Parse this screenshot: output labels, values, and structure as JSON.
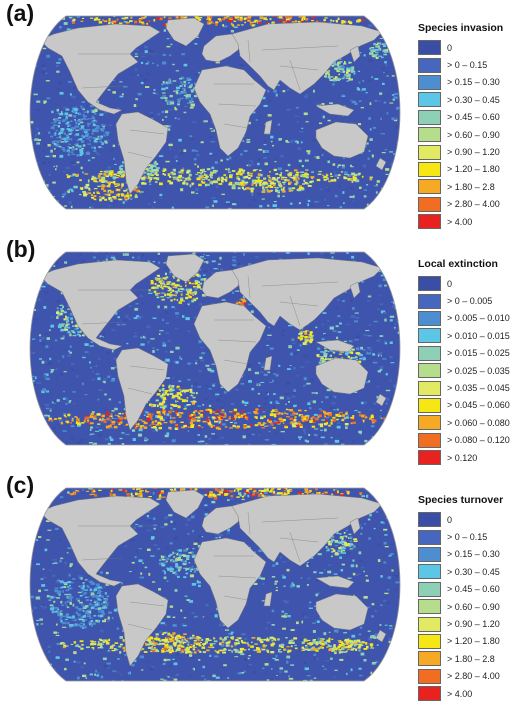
{
  "panels": [
    {
      "label": "(a)",
      "legend_title": "Species invasion",
      "palette": [
        "#3a4ea6",
        "#4766bd",
        "#4d8ed0",
        "#5cc6e6",
        "#8dd0b6",
        "#b6dd8b",
        "#e1ea62",
        "#f6e614",
        "#f6a924",
        "#f06d22",
        "#e8221f"
      ],
      "categories": [
        "0",
        "> 0 – 0.15",
        "> 0.15 – 0.30",
        "> 0.30 – 0.45",
        "> 0.45 – 0.60",
        "> 0.60 – 0.90",
        "> 0.90 – 1.20",
        "> 1.20 – 1.80",
        "> 1.80 – 2.8",
        "> 2.80 – 4.00",
        "> 4.00"
      ]
    },
    {
      "label": "(b)",
      "legend_title": "Local extinction",
      "palette": [
        "#3a4ea6",
        "#4766bd",
        "#4d8ed0",
        "#5cc6e6",
        "#8dd0b6",
        "#b6dd8b",
        "#e1ea62",
        "#f6e614",
        "#f6a924",
        "#f06d22",
        "#e8221f"
      ],
      "categories": [
        "0",
        "> 0 – 0.005",
        "> 0.005 – 0.010",
        "> 0.010 – 0.015",
        "> 0.015 – 0.025",
        "> 0.025 – 0.035",
        "> 0.035 – 0.045",
        "> 0.045 – 0.060",
        "> 0.060 – 0.080",
        "> 0.080 – 0.120",
        "> 0.120"
      ]
    },
    {
      "label": "(c)",
      "legend_title": "Species turnover",
      "palette": [
        "#3a4ea6",
        "#4766bd",
        "#4d8ed0",
        "#5cc6e6",
        "#8dd0b6",
        "#b6dd8b",
        "#e1ea62",
        "#f6e614",
        "#f6a924",
        "#f06d22",
        "#e8221f"
      ],
      "categories": [
        "0",
        "> 0 – 0.15",
        "> 0.15 – 0.30",
        "> 0.30 – 0.45",
        "> 0.45 – 0.60",
        "> 0.60 – 0.90",
        "> 0.90 – 1.20",
        "> 1.20 – 1.80",
        "> 1.80 – 2.8",
        "> 2.80 – 4.00",
        "> 4.00"
      ]
    }
  ],
  "colors": {
    "land": "#c8c8c8",
    "ocean_base": "#3f55ad",
    "border": "#777777"
  }
}
